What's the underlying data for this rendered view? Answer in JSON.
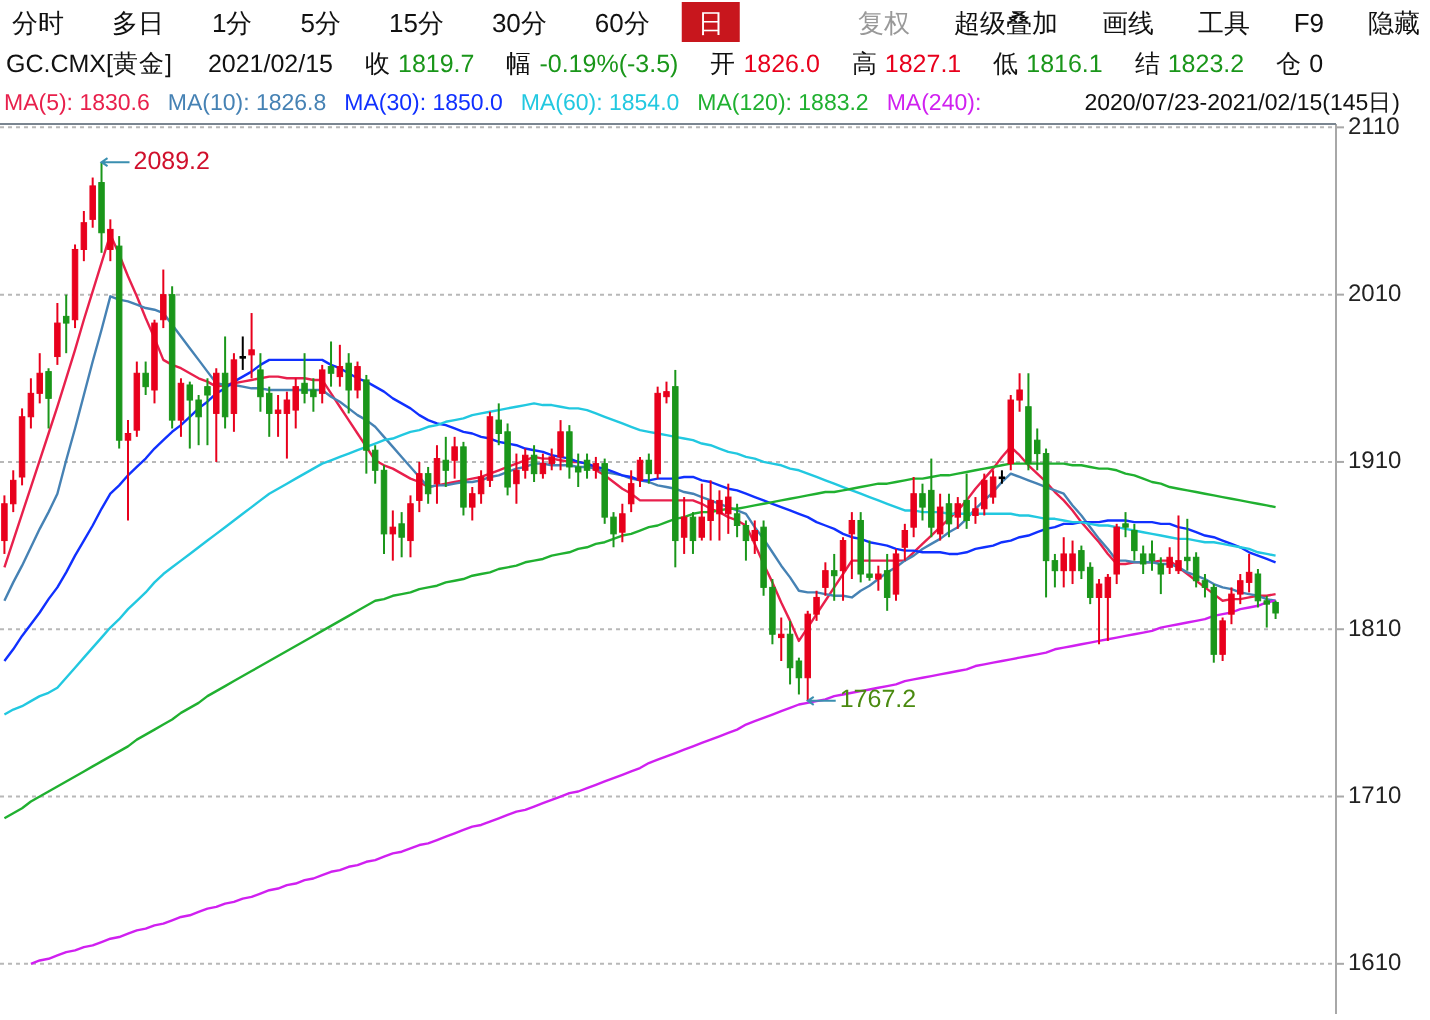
{
  "chart_data": {
    "type": "candlestick",
    "title": "GC.CMX[黄金]",
    "categories": [
      null,
      null,
      null,
      null,
      null,
      null,
      null,
      null,
      null,
      null,
      null,
      null,
      null,
      null,
      null,
      null,
      null,
      null,
      null,
      null,
      null,
      null,
      null,
      null,
      null,
      null,
      null,
      null,
      null,
      null,
      null,
      null,
      null,
      null,
      null,
      null,
      null,
      null,
      null,
      null,
      null,
      null,
      null,
      null,
      null,
      null,
      null,
      null,
      null,
      null,
      null,
      null,
      null,
      null,
      null,
      null,
      null,
      null,
      null,
      null,
      null,
      null,
      null,
      null,
      null,
      null,
      null,
      null,
      null,
      null,
      null,
      null,
      null,
      null,
      null,
      null,
      null,
      null,
      null,
      null,
      null,
      null,
      null,
      null,
      null,
      null,
      null,
      null,
      null,
      null,
      null,
      null,
      null,
      null,
      null,
      null,
      null,
      null,
      null,
      null,
      null,
      null,
      null,
      null,
      null,
      null,
      null,
      null,
      null,
      null,
      null,
      null,
      null,
      null,
      null,
      null,
      null,
      null,
      null,
      null,
      null,
      null,
      null,
      null,
      null,
      null,
      null,
      null,
      null,
      null,
      null,
      null,
      null,
      null,
      null,
      null,
      null,
      null,
      null,
      null,
      null,
      null,
      null,
      null,
      null
    ],
    "ohlc": [
      [
        1863,
        1890,
        1855,
        1885
      ],
      [
        1885,
        1905,
        1880,
        1899
      ],
      [
        1901,
        1942,
        1896,
        1937
      ],
      [
        1937,
        1960,
        1930,
        1951
      ],
      [
        1951,
        1975,
        1945,
        1963
      ],
      [
        1964,
        1966,
        1930,
        1948
      ],
      [
        1973,
        2005,
        1968,
        1993
      ],
      [
        1997,
        2010,
        1975,
        1993
      ],
      [
        1995,
        2040,
        1990,
        2037
      ],
      [
        2037,
        2060,
        2030,
        2053
      ],
      [
        2055,
        2080,
        2050,
        2075
      ],
      [
        2077,
        2089.2,
        2035,
        2047
      ],
      [
        2037,
        2055,
        2030,
        2049
      ],
      [
        2039,
        2045,
        1918,
        1923
      ],
      [
        1923,
        1935,
        1875,
        1927
      ],
      [
        1929,
        1970,
        1925,
        1963
      ],
      [
        1963,
        1970,
        1950,
        1955
      ],
      [
        1953,
        1995,
        1945,
        1993
      ],
      [
        1995,
        2025,
        1990,
        2010
      ],
      [
        2010,
        2015,
        1930,
        1935
      ],
      [
        1935,
        1960,
        1925,
        1957
      ],
      [
        1956,
        1958,
        1918,
        1947
      ],
      [
        1947,
        1950,
        1920,
        1937
      ],
      [
        1955,
        1960,
        1920,
        1950
      ],
      [
        1939,
        1966,
        1910,
        1963
      ],
      [
        1963,
        1985,
        1930,
        1937
      ],
      [
        1939,
        1975,
        1928,
        1971
      ],
      [
        1973,
        1985,
        1965,
        1973
      ],
      [
        1974,
        1999,
        1960,
        1977
      ],
      [
        1965,
        1975,
        1940,
        1949
      ],
      [
        1951,
        1955,
        1925,
        1939
      ],
      [
        1939,
        1950,
        1925,
        1941
      ],
      [
        1939,
        1952,
        1912,
        1947
      ],
      [
        1941,
        1960,
        1930,
        1955
      ],
      [
        1957,
        1975,
        1945,
        1951
      ],
      [
        1953,
        1960,
        1940,
        1949
      ],
      [
        1951,
        1968,
        1945,
        1965
      ],
      [
        1967,
        1982,
        1955,
        1963
      ],
      [
        1961,
        1980,
        1955,
        1967
      ],
      [
        1969,
        1975,
        1939,
        1953
      ],
      [
        1953,
        1970,
        1948,
        1967
      ],
      [
        1959,
        1962,
        1903,
        1917
      ],
      [
        1917,
        1920,
        1897,
        1905
      ],
      [
        1905,
        1908,
        1855,
        1867
      ],
      [
        1867,
        1881,
        1851,
        1871
      ],
      [
        1873,
        1880,
        1853,
        1865
      ],
      [
        1863,
        1890,
        1853,
        1885
      ],
      [
        1887,
        1910,
        1880,
        1903
      ],
      [
        1903,
        1907,
        1885,
        1891
      ],
      [
        1897,
        1920,
        1885,
        1912
      ],
      [
        1911,
        1925,
        1895,
        1905
      ],
      [
        1911,
        1925,
        1900,
        1919
      ],
      [
        1919,
        1922,
        1878,
        1883
      ],
      [
        1883,
        1895,
        1875,
        1891
      ],
      [
        1891,
        1905,
        1885,
        1901
      ],
      [
        1899,
        1940,
        1895,
        1937
      ],
      [
        1935,
        1945,
        1920,
        1927
      ],
      [
        1928,
        1933,
        1890,
        1895
      ],
      [
        1897,
        1915,
        1885,
        1905
      ],
      [
        1905,
        1918,
        1900,
        1914
      ],
      [
        1914,
        1920,
        1898,
        1903
      ],
      [
        1903,
        1915,
        1900,
        1909
      ],
      [
        1909,
        1918,
        1905,
        1913
      ],
      [
        1913,
        1935,
        1905,
        1928
      ],
      [
        1928,
        1932,
        1900,
        1907
      ],
      [
        1907,
        1915,
        1895,
        1904
      ],
      [
        1911,
        1915,
        1900,
        1905
      ],
      [
        1905,
        1913,
        1900,
        1909
      ],
      [
        1909,
        1912,
        1873,
        1877
      ],
      [
        1877,
        1880,
        1859,
        1867
      ],
      [
        1868,
        1885,
        1862,
        1879
      ],
      [
        1885,
        1905,
        1880,
        1897
      ],
      [
        1899,
        1913,
        1895,
        1911
      ],
      [
        1911,
        1915,
        1897,
        1903
      ],
      [
        1903,
        1955,
        1900,
        1951
      ],
      [
        1949,
        1958,
        1945,
        1952
      ],
      [
        1955,
        1965,
        1847,
        1863
      ],
      [
        1865,
        1889,
        1855,
        1877
      ],
      [
        1877,
        1880,
        1855,
        1863
      ],
      [
        1865,
        1897,
        1863,
        1877
      ],
      [
        1875,
        1899,
        1863,
        1887
      ],
      [
        1879,
        1893,
        1863,
        1887
      ],
      [
        1879,
        1897,
        1867,
        1889
      ],
      [
        1879,
        1885,
        1865,
        1872
      ],
      [
        1872,
        1875,
        1851,
        1863
      ],
      [
        1863,
        1875,
        1855,
        1869
      ],
      [
        1871,
        1875,
        1830,
        1835
      ],
      [
        1835,
        1840,
        1801,
        1807
      ],
      [
        1805,
        1817,
        1791,
        1807
      ],
      [
        1807,
        1815,
        1777,
        1787
      ],
      [
        1791,
        1793,
        1771,
        1781
      ],
      [
        1781,
        1821,
        1767.2,
        1819
      ],
      [
        1819,
        1833,
        1815,
        1829
      ],
      [
        1835,
        1850,
        1830,
        1845
      ],
      [
        1845,
        1855,
        1827,
        1842
      ],
      [
        1845,
        1865,
        1827,
        1863
      ],
      [
        1867,
        1880,
        1840,
        1875
      ],
      [
        1875,
        1880,
        1838,
        1843
      ],
      [
        1843,
        1863,
        1839,
        1841
      ],
      [
        1840,
        1848,
        1833,
        1843
      ],
      [
        1845,
        1855,
        1821,
        1829
      ],
      [
        1831,
        1858,
        1827,
        1855
      ],
      [
        1859,
        1873,
        1851,
        1869
      ],
      [
        1871,
        1901,
        1865,
        1891
      ],
      [
        1891,
        1897,
        1875,
        1883
      ],
      [
        1893,
        1912,
        1865,
        1871
      ],
      [
        1867,
        1891,
        1863,
        1883
      ],
      [
        1885,
        1891,
        1865,
        1873
      ],
      [
        1877,
        1889,
        1870,
        1885
      ],
      [
        1887,
        1903,
        1870,
        1875
      ],
      [
        1878,
        1889,
        1873,
        1882
      ],
      [
        1882,
        1903,
        1878,
        1899
      ],
      [
        1889,
        1905,
        1885,
        1901
      ],
      [
        1901,
        1905,
        1897,
        1901
      ],
      [
        1909,
        1950,
        1905,
        1947
      ],
      [
        1947,
        1963,
        1940,
        1953
      ],
      [
        1943,
        1963,
        1905,
        1909
      ],
      [
        1923,
        1930,
        1905,
        1915
      ],
      [
        1915,
        1918,
        1829,
        1851
      ],
      [
        1851,
        1855,
        1835,
        1845
      ],
      [
        1845,
        1865,
        1835,
        1855
      ],
      [
        1845,
        1863,
        1837,
        1855
      ],
      [
        1857,
        1860,
        1840,
        1845
      ],
      [
        1847,
        1850,
        1825,
        1829
      ],
      [
        1829,
        1840,
        1801,
        1837
      ],
      [
        1829,
        1843,
        1803,
        1841
      ],
      [
        1843,
        1873,
        1837,
        1871
      ],
      [
        1873,
        1880,
        1865,
        1871
      ],
      [
        1869,
        1873,
        1851,
        1857
      ],
      [
        1855,
        1860,
        1843,
        1849
      ],
      [
        1855,
        1863,
        1845,
        1851
      ],
      [
        1849,
        1853,
        1831,
        1843
      ],
      [
        1847,
        1859,
        1843,
        1853
      ],
      [
        1845,
        1878,
        1843,
        1851
      ],
      [
        1853,
        1876,
        1845,
        1851
      ],
      [
        1853,
        1856,
        1835,
        1839
      ],
      [
        1839,
        1843,
        1829,
        1835
      ],
      [
        1835,
        1837,
        1790,
        1795
      ],
      [
        1795,
        1817,
        1791,
        1815
      ],
      [
        1819,
        1835,
        1813,
        1831
      ],
      [
        1831,
        1843,
        1825,
        1839
      ],
      [
        1838,
        1855,
        1832,
        1844
      ],
      [
        1843,
        1846,
        1823,
        1827
      ],
      [
        1827,
        1830,
        1811,
        1825
      ],
      [
        1826.0,
        1827.1,
        1816.1,
        1819.7
      ]
    ],
    "series": [
      {
        "type": "line",
        "name": "MA(5): 1830.6",
        "color": "#e8204c",
        "values": [
          1847,
          1863,
          1879,
          1895,
          1911,
          1927,
          1943,
          1960,
          1977,
          1995,
          2012,
          2029,
          2046,
          2034,
          2021,
          2009,
          1996,
          1984,
          1971,
          1968,
          1966,
          1963,
          1960,
          1958,
          1955,
          1956,
          1957,
          1958,
          1959,
          1960,
          1961,
          1961,
          1960,
          1960,
          1960,
          1959,
          1959,
          1951,
          1943,
          1935,
          1927,
          1919,
          1911,
          1908,
          1906,
          1903,
          1900,
          1898,
          1895,
          1896,
          1897,
          1898,
          1899,
          1900,
          1901,
          1903,
          1905,
          1907,
          1909,
          1911,
          1913,
          1912,
          1912,
          1911,
          1910,
          1910,
          1909,
          1905,
          1902,
          1898,
          1894,
          1891,
          1887,
          1887,
          1887,
          1887,
          1887,
          1887,
          1887,
          1885,
          1882,
          1880,
          1877,
          1875,
          1872,
          1861,
          1849,
          1838,
          1826,
          1815,
          1803,
          1811,
          1819,
          1827,
          1835,
          1843,
          1851,
          1851,
          1851,
          1851,
          1851,
          1851,
          1851,
          1856,
          1861,
          1866,
          1871,
          1876,
          1881,
          1887,
          1894,
          1900,
          1906,
          1913,
          1919,
          1914,
          1908,
          1903,
          1898,
          1892,
          1887,
          1881,
          1874,
          1868,
          1862,
          1855,
          1849,
          1849,
          1850,
          1850,
          1850,
          1851,
          1851,
          1847,
          1843,
          1839,
          1835,
          1831,
          1827,
          1828,
          1828,
          1829,
          1830,
          1830,
          1831
        ]
      },
      {
        "type": "line",
        "name": "MA(10): 1826.8",
        "color": "#4682b4",
        "values": [
          1827,
          1838,
          1848,
          1859,
          1870,
          1880,
          1891,
          1911,
          1930,
          1950,
          1970,
          1989,
          2009,
          2007,
          2006,
          2004,
          2002,
          2001,
          1999,
          1992,
          1985,
          1978,
          1971,
          1964,
          1957,
          1956,
          1956,
          1955,
          1954,
          1954,
          1953,
          1953,
          1953,
          1953,
          1953,
          1953,
          1953,
          1949,
          1946,
          1942,
          1938,
          1935,
          1931,
          1925,
          1919,
          1913,
          1907,
          1901,
          1895,
          1896,
          1896,
          1897,
          1898,
          1898,
          1899,
          1901,
          1902,
          1904,
          1906,
          1907,
          1909,
          1909,
          1908,
          1908,
          1908,
          1907,
          1907,
          1906,
          1904,
          1903,
          1902,
          1900,
          1899,
          1898,
          1896,
          1895,
          1894,
          1892,
          1891,
          1889,
          1887,
          1885,
          1883,
          1881,
          1879,
          1871,
          1864,
          1856,
          1848,
          1841,
          1833,
          1832,
          1832,
          1831,
          1830,
          1830,
          1829,
          1833,
          1836,
          1840,
          1844,
          1847,
          1851,
          1854,
          1858,
          1861,
          1864,
          1868,
          1871,
          1876,
          1882,
          1887,
          1892,
          1898,
          1903,
          1901,
          1899,
          1897,
          1895,
          1893,
          1891,
          1884,
          1878,
          1871,
          1864,
          1858,
          1851,
          1851,
          1850,
          1850,
          1850,
          1849,
          1849,
          1847,
          1844,
          1842,
          1840,
          1837,
          1835,
          1834,
          1832,
          1831,
          1830,
          1828,
          1827
        ]
      },
      {
        "type": "line",
        "name": "MA(30): 1850.0",
        "color": "#1030ff",
        "values": [
          1791,
          1798,
          1806,
          1813,
          1820,
          1828,
          1835,
          1844,
          1854,
          1863,
          1872,
          1882,
          1891,
          1896,
          1902,
          1907,
          1912,
          1918,
          1923,
          1928,
          1932,
          1937,
          1942,
          1946,
          1951,
          1954,
          1958,
          1961,
          1964,
          1968,
          1971,
          1971,
          1971,
          1971,
          1971,
          1971,
          1971,
          1968,
          1966,
          1963,
          1960,
          1958,
          1955,
          1952,
          1948,
          1945,
          1942,
          1938,
          1935,
          1933,
          1932,
          1930,
          1928,
          1927,
          1925,
          1924,
          1922,
          1921,
          1920,
          1918,
          1917,
          1916,
          1914,
          1913,
          1912,
          1910,
          1909,
          1907,
          1906,
          1904,
          1902,
          1901,
          1899,
          1899,
          1900,
          1900,
          1900,
          1901,
          1901,
          1899,
          1898,
          1896,
          1894,
          1893,
          1891,
          1889,
          1887,
          1885,
          1883,
          1881,
          1879,
          1877,
          1874,
          1872,
          1870,
          1867,
          1865,
          1864,
          1862,
          1861,
          1860,
          1858,
          1857,
          1857,
          1856,
          1856,
          1856,
          1855,
          1855,
          1856,
          1858,
          1859,
          1860,
          1862,
          1863,
          1865,
          1866,
          1868,
          1870,
          1871,
          1873,
          1873,
          1874,
          1874,
          1874,
          1875,
          1875,
          1875,
          1874,
          1874,
          1874,
          1873,
          1873,
          1871,
          1870,
          1868,
          1866,
          1865,
          1863,
          1861,
          1859,
          1856,
          1854,
          1852,
          1850
        ]
      },
      {
        "type": "line",
        "name": "MA(60): 1854.0",
        "color": "#22c8e0",
        "values": [
          1759,
          1762,
          1764,
          1767,
          1770,
          1772,
          1775,
          1781,
          1787,
          1793,
          1799,
          1805,
          1811,
          1816,
          1822,
          1827,
          1832,
          1838,
          1843,
          1847,
          1851,
          1855,
          1859,
          1863,
          1867,
          1871,
          1875,
          1879,
          1883,
          1887,
          1891,
          1894,
          1897,
          1900,
          1903,
          1906,
          1909,
          1911,
          1913,
          1915,
          1917,
          1919,
          1921,
          1923,
          1924,
          1926,
          1928,
          1929,
          1931,
          1932,
          1934,
          1935,
          1936,
          1938,
          1939,
          1940,
          1941,
          1942,
          1943,
          1944,
          1945,
          1944,
          1944,
          1943,
          1942,
          1942,
          1941,
          1939,
          1937,
          1935,
          1933,
          1931,
          1929,
          1928,
          1927,
          1926,
          1925,
          1924,
          1923,
          1921,
          1920,
          1918,
          1916,
          1915,
          1913,
          1912,
          1910,
          1909,
          1908,
          1906,
          1905,
          1903,
          1901,
          1899,
          1897,
          1895,
          1893,
          1891,
          1889,
          1887,
          1885,
          1883,
          1881,
          1881,
          1880,
          1880,
          1880,
          1879,
          1879,
          1879,
          1879,
          1879,
          1879,
          1879,
          1879,
          1878,
          1878,
          1877,
          1876,
          1876,
          1875,
          1874,
          1874,
          1873,
          1872,
          1872,
          1871,
          1870,
          1869,
          1868,
          1867,
          1866,
          1865,
          1864,
          1864,
          1863,
          1862,
          1862,
          1861,
          1860,
          1859,
          1858,
          1856,
          1855,
          1854
        ]
      },
      {
        "type": "line",
        "name": "MA(120): 1883.2",
        "color": "#20b030",
        "values": [
          1697,
          1700,
          1703,
          1707,
          1710,
          1713,
          1716,
          1719,
          1722,
          1725,
          1728,
          1731,
          1734,
          1737,
          1740,
          1744,
          1747,
          1750,
          1753,
          1756,
          1760,
          1763,
          1766,
          1770,
          1773,
          1776,
          1779,
          1782,
          1785,
          1788,
          1791,
          1794,
          1797,
          1800,
          1803,
          1806,
          1809,
          1812,
          1815,
          1818,
          1821,
          1824,
          1827,
          1828,
          1830,
          1831,
          1832,
          1834,
          1835,
          1836,
          1838,
          1839,
          1840,
          1842,
          1843,
          1844,
          1846,
          1847,
          1848,
          1850,
          1851,
          1852,
          1854,
          1855,
          1856,
          1858,
          1859,
          1861,
          1862,
          1864,
          1866,
          1867,
          1869,
          1871,
          1872,
          1874,
          1876,
          1877,
          1879,
          1880,
          1880,
          1881,
          1882,
          1882,
          1883,
          1884,
          1885,
          1886,
          1887,
          1888,
          1889,
          1890,
          1891,
          1892,
          1892,
          1893,
          1894,
          1895,
          1896,
          1897,
          1897,
          1898,
          1899,
          1900,
          1900,
          1901,
          1902,
          1902,
          1903,
          1904,
          1905,
          1906,
          1907,
          1908,
          1909,
          1909,
          1909,
          1909,
          1909,
          1909,
          1909,
          1908,
          1908,
          1907,
          1906,
          1906,
          1905,
          1903,
          1902,
          1900,
          1898,
          1897,
          1895,
          1894,
          1893,
          1892,
          1891,
          1890,
          1889,
          1888,
          1887,
          1886,
          1885,
          1884,
          1883
        ]
      },
      {
        "type": "line",
        "name": "MA(240):",
        "color": "#d020f0",
        "values": [
          null,
          null,
          null,
          1610,
          1612,
          1613,
          1615,
          1617,
          1618,
          1620,
          1621,
          1623,
          1625,
          1626,
          1628,
          1630,
          1631,
          1633,
          1634,
          1636,
          1638,
          1639,
          1641,
          1643,
          1644,
          1646,
          1647,
          1649,
          1650,
          1652,
          1654,
          1655,
          1657,
          1658,
          1660,
          1661,
          1663,
          1665,
          1666,
          1668,
          1669,
          1671,
          1672,
          1674,
          1676,
          1677,
          1679,
          1681,
          1682,
          1684,
          1686,
          1688,
          1690,
          1692,
          1693,
          1695,
          1697,
          1699,
          1701,
          1702,
          1704,
          1706,
          1708,
          1710,
          1712,
          1713,
          1715,
          1717,
          1719,
          1721,
          1723,
          1725,
          1727,
          1730,
          1732,
          1734,
          1736,
          1738,
          1740,
          1742,
          1744,
          1746,
          1748,
          1750,
          1753,
          1755,
          1757,
          1759,
          1761,
          1763,
          1765,
          1766,
          1767,
          1768,
          1770,
          1771,
          1772,
          1773,
          1774,
          1775,
          1776,
          1777,
          1779,
          1780,
          1781,
          1782,
          1783,
          1784,
          1785,
          1786,
          1788,
          1789,
          1790,
          1791,
          1792,
          1793,
          1794,
          1795,
          1796,
          1798,
          1799,
          1800,
          1801,
          1802,
          1803,
          1804,
          1805,
          1806,
          1807,
          1808,
          1809,
          1811,
          1812,
          1813,
          1814,
          1815,
          1816,
          1818,
          1819,
          1820,
          1822,
          1823,
          1824,
          1826,
          1827
        ]
      }
    ],
    "annotations": [
      "分时",
      "多日",
      "1分",
      "5分",
      "15分",
      "30分",
      "60分",
      "日",
      "复权",
      "超级叠加",
      "画线",
      "工具",
      "F9",
      "隐藏",
      "2021/02/15",
      "收 1819.7",
      "幅 -0.19%(-3.5)",
      "开 1826.0",
      "高 1827.1",
      "低 1816.1",
      "结 1823.2",
      "仓 0",
      "2020/07/23-2021/02/15(145日)",
      "2089.2",
      "1767.2"
    ],
    "ylim": [
      1580,
      2112
    ],
    "yticks": [
      1610,
      1710,
      1810,
      1910,
      2010,
      2110
    ],
    "grid": "y",
    "legend": "top"
  }
}
